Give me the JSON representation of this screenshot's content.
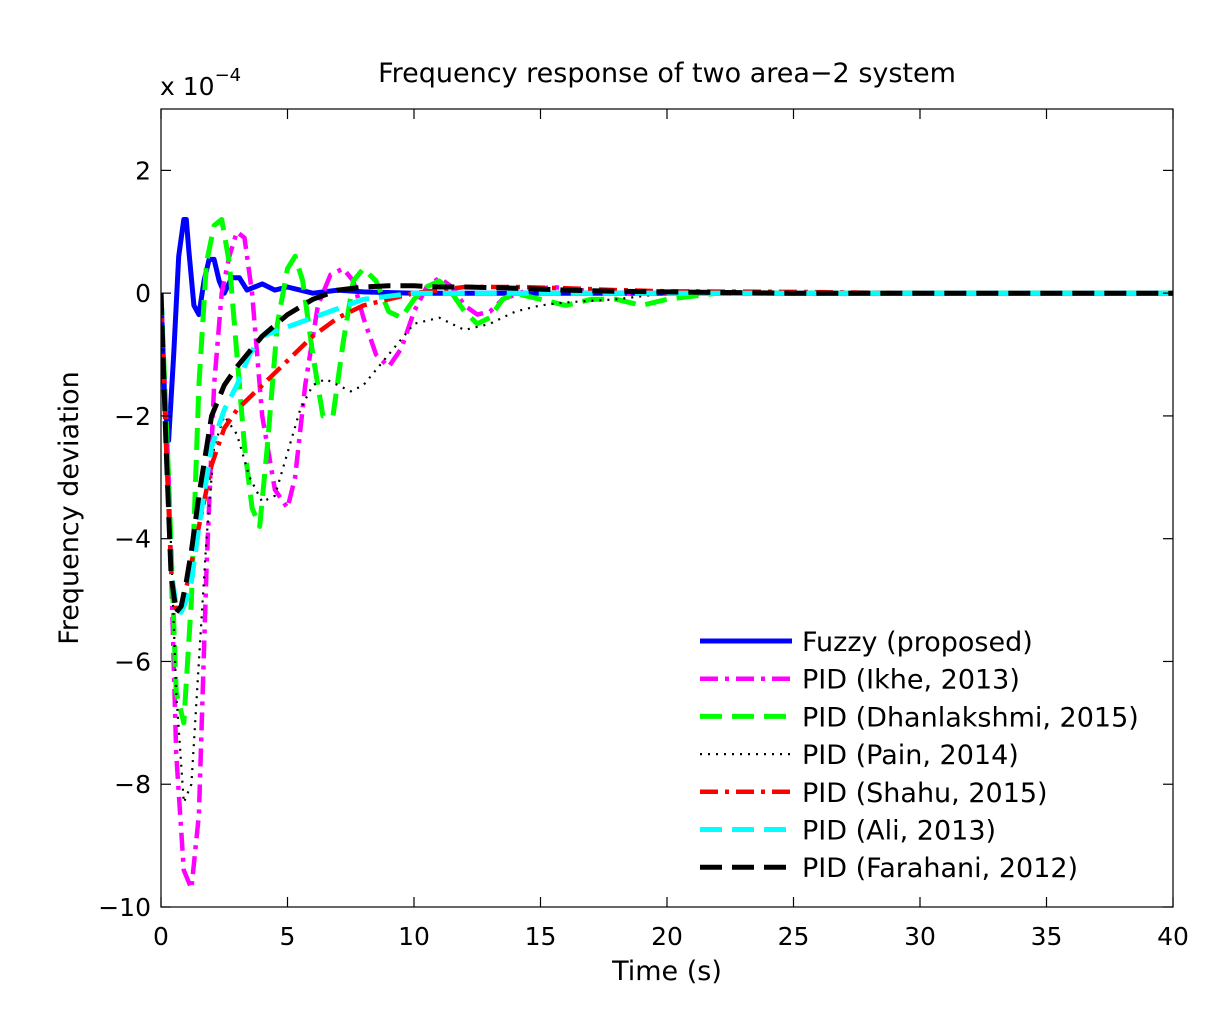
{
  "chart_data": {
    "type": "line",
    "title": "Frequency response of two area−2 system",
    "xlabel": "Time (s)",
    "ylabel": "Frequency deviation",
    "multiplier_base": "x 10",
    "multiplier_exp": "−4",
    "xlim": [
      0,
      40
    ],
    "ylim": [
      -10,
      3
    ],
    "xticks": [
      0,
      5,
      10,
      15,
      20,
      25,
      30,
      35,
      40
    ],
    "yticks": [
      -10,
      -8,
      -6,
      -4,
      -2,
      0,
      2
    ],
    "ytick_labels": [
      "−10",
      "−8",
      "−6",
      "−4",
      "−2",
      "0",
      "2"
    ],
    "grid": false,
    "legend_position": "bottom-right",
    "series": [
      {
        "name": "Fuzzy (proposed)",
        "color": "#0000ff",
        "style": "solid",
        "x": [
          0,
          0.15,
          0.3,
          0.5,
          0.7,
          0.9,
          1.0,
          1.1,
          1.3,
          1.5,
          1.7,
          1.9,
          2.1,
          2.3,
          2.5,
          2.8,
          3.1,
          3.4,
          3.7,
          4.0,
          4.5,
          5.0,
          5.5,
          6.0,
          7.0,
          8.0,
          10.0,
          15.0,
          20.0,
          30.0,
          40.0
        ],
        "y": [
          0,
          -1.8,
          -2.4,
          -1.0,
          0.6,
          1.2,
          1.2,
          0.7,
          -0.2,
          -0.35,
          0.2,
          0.55,
          0.55,
          0.2,
          0.0,
          0.25,
          0.25,
          0.05,
          0.1,
          0.15,
          0.05,
          0.1,
          0.05,
          0.0,
          0.05,
          0.02,
          0.0,
          0.0,
          0.0,
          0.0,
          0.0
        ]
      },
      {
        "name": "PID (Ikhe, 2013)",
        "color": "#ff00ff",
        "style": "dashdot",
        "x": [
          0,
          0.3,
          0.6,
          0.9,
          1.2,
          1.5,
          1.8,
          2.1,
          2.4,
          2.7,
          3.0,
          3.3,
          3.6,
          4.0,
          4.5,
          5.0,
          5.3,
          5.7,
          6.2,
          6.7,
          7.2,
          7.6,
          8.0,
          8.5,
          9.0,
          9.5,
          10.0,
          10.5,
          11.0,
          11.5,
          12.0,
          12.5,
          13.0,
          13.5,
          14.5,
          15.5,
          16.5,
          18.0,
          20.0,
          25.0,
          30.0,
          40.0
        ],
        "y": [
          0,
          -3.0,
          -7.5,
          -9.4,
          -9.7,
          -8.5,
          -4.5,
          -1.5,
          0.0,
          0.6,
          1.0,
          0.9,
          0.0,
          -2.0,
          -3.2,
          -3.5,
          -3.0,
          -1.5,
          -0.2,
          0.3,
          0.4,
          0.2,
          -0.4,
          -1.0,
          -1.2,
          -0.9,
          -0.3,
          0.1,
          0.25,
          0.1,
          -0.2,
          -0.35,
          -0.3,
          -0.1,
          0.05,
          0.1,
          0.05,
          0.0,
          0.0,
          0.0,
          0.0,
          0.0
        ]
      },
      {
        "name": "PID (Dhanlakshmi, 2015)",
        "color": "#00ff00",
        "style": "dashed",
        "x": [
          0,
          0.3,
          0.6,
          0.9,
          1.2,
          1.5,
          1.8,
          2.1,
          2.4,
          2.7,
          3.0,
          3.3,
          3.6,
          3.9,
          4.2,
          4.6,
          5.0,
          5.3,
          5.6,
          6.0,
          6.4,
          6.8,
          7.2,
          7.6,
          8.0,
          8.5,
          9.0,
          9.5,
          10.0,
          10.5,
          11.0,
          11.5,
          12.0,
          12.5,
          13.0,
          13.5,
          14.0,
          15.0,
          16.0,
          17.0,
          18.0,
          19.0,
          20.0,
          22.0,
          25.0,
          30.0,
          40.0
        ],
        "y": [
          0,
          -3.0,
          -6.5,
          -7.0,
          -5.0,
          -1.5,
          0.5,
          1.1,
          1.2,
          0.5,
          -1.0,
          -2.5,
          -3.5,
          -3.8,
          -2.5,
          -0.5,
          0.4,
          0.6,
          0.2,
          -1.0,
          -2.0,
          -2.0,
          -0.8,
          0.2,
          0.4,
          0.2,
          -0.3,
          -0.4,
          -0.1,
          0.1,
          0.2,
          0.0,
          -0.3,
          -0.5,
          -0.4,
          -0.1,
          0.0,
          -0.1,
          -0.2,
          -0.1,
          -0.1,
          -0.2,
          -0.1,
          0.0,
          0.0,
          0.0,
          0.0
        ]
      },
      {
        "name": "PID (Pain, 2014)",
        "color": "#000000",
        "style": "dotted",
        "x": [
          0,
          0.3,
          0.6,
          0.9,
          1.2,
          1.5,
          1.8,
          2.1,
          2.5,
          3.0,
          3.5,
          4.0,
          4.5,
          5.0,
          5.5,
          6.0,
          6.5,
          7.0,
          7.5,
          8.0,
          9.0,
          10.0,
          11.0,
          12.0,
          13.0,
          14.0,
          15.0,
          16.0,
          18.0,
          20.0,
          25.0,
          30.0,
          40.0
        ],
        "y": [
          0,
          -3.0,
          -6.5,
          -8.3,
          -8.0,
          -6.0,
          -4.0,
          -2.5,
          -2.0,
          -2.3,
          -3.0,
          -3.4,
          -3.3,
          -2.6,
          -1.9,
          -1.5,
          -1.4,
          -1.5,
          -1.6,
          -1.5,
          -1.0,
          -0.5,
          -0.4,
          -0.6,
          -0.5,
          -0.3,
          -0.2,
          -0.15,
          -0.1,
          0.0,
          0.0,
          0.0,
          0.0
        ]
      },
      {
        "name": "PID (Shahu, 2015)",
        "color": "#ff0000",
        "style": "dashdot",
        "x": [
          0,
          0.2,
          0.4,
          0.6,
          0.8,
          1.0,
          1.2,
          1.5,
          2.0,
          2.5,
          3.0,
          4.0,
          5.0,
          6.0,
          7.0,
          8.0,
          9.0,
          10.0,
          11.0,
          12.0,
          14.0,
          16.0,
          18.0,
          20.0,
          25.0,
          30.0,
          40.0
        ],
        "y": [
          0,
          -2.5,
          -4.5,
          -5.2,
          -5.1,
          -4.8,
          -4.4,
          -3.8,
          -2.8,
          -2.2,
          -1.9,
          -1.5,
          -1.1,
          -0.7,
          -0.4,
          -0.2,
          -0.1,
          0.0,
          0.05,
          0.1,
          0.1,
          0.08,
          0.05,
          0.03,
          0.02,
          0.0,
          0.0
        ]
      },
      {
        "name": "PID (Ali, 2013)",
        "color": "#00ffff",
        "style": "dashed",
        "x": [
          0,
          0.2,
          0.4,
          0.6,
          0.8,
          1.0,
          1.2,
          1.5,
          2.0,
          2.5,
          3.0,
          3.5,
          4.0,
          5.0,
          6.0,
          7.0,
          8.0,
          9.0,
          10.0,
          12.0,
          14.0,
          16.0,
          18.0,
          20.0,
          25.0,
          30.0,
          40.0
        ],
        "y": [
          0,
          -2.5,
          -4.5,
          -5.1,
          -5.2,
          -5.0,
          -4.7,
          -3.8,
          -2.5,
          -1.9,
          -1.5,
          -1.0,
          -0.7,
          -0.55,
          -0.4,
          -0.25,
          -0.1,
          -0.05,
          0.0,
          0.0,
          0.0,
          0.0,
          0.0,
          0.0,
          0.0,
          0.0,
          0.0
        ]
      },
      {
        "name": "PID (Farahani, 2012)",
        "color": "#000000",
        "style": "dashed",
        "x": [
          0,
          0.2,
          0.4,
          0.6,
          0.8,
          1.0,
          1.2,
          1.5,
          2.0,
          2.5,
          3.0,
          4.0,
          5.0,
          6.0,
          7.0,
          8.0,
          9.0,
          10.0,
          11.0,
          12.0,
          14.0,
          16.0,
          18.0,
          20.0,
          25.0,
          30.0,
          40.0
        ],
        "y": [
          0,
          -2.5,
          -4.6,
          -5.2,
          -5.1,
          -4.7,
          -4.2,
          -3.3,
          -2.0,
          -1.5,
          -1.2,
          -0.7,
          -0.35,
          -0.1,
          0.05,
          0.1,
          0.12,
          0.12,
          0.1,
          0.1,
          0.08,
          0.05,
          0.03,
          0.02,
          0.0,
          0.0,
          0.0
        ]
      }
    ]
  }
}
